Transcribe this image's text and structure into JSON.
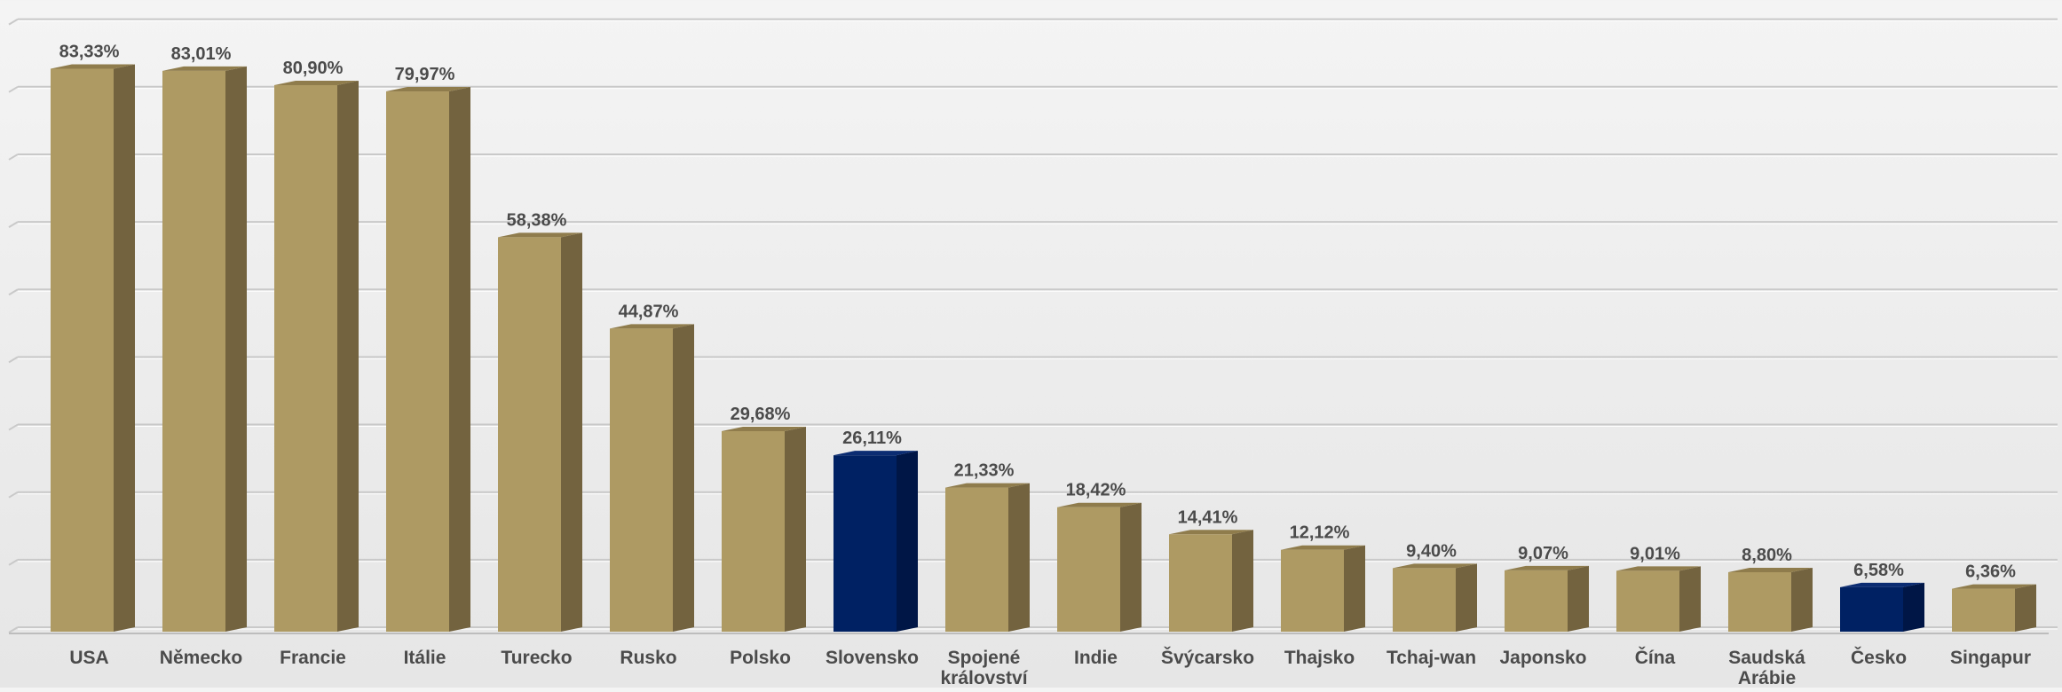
{
  "colors": {
    "bar_front": "#ae9a63",
    "bar_side": "#73633f",
    "bar_top": "#8f7c4c",
    "highlight_front": "#002163",
    "highlight_side": "#001646",
    "highlight_top": "#0b2c72",
    "gridline": "#c9c9c9",
    "gridline_light": "#ffffff",
    "label": "#4b4b4b"
  },
  "chart_data": {
    "type": "bar",
    "title": "",
    "xlabel": "",
    "ylabel": "",
    "ylim": [
      0,
      90
    ],
    "grid": true,
    "legend": "none",
    "categories": [
      "USA",
      "Německo",
      "Francie",
      "Itálie",
      "Turecko",
      "Rusko",
      "Polsko",
      "Slovensko",
      "Spojené království",
      "Indie",
      "Švýcarsko",
      "Thajsko",
      "Tchaj-wan",
      "Japonsko",
      "Čína",
      "Saudská Arábie",
      "Česko",
      "Singapur"
    ],
    "category_lines": [
      [
        "USA"
      ],
      [
        "Německo"
      ],
      [
        "Francie"
      ],
      [
        "Itálie"
      ],
      [
        "Turecko"
      ],
      [
        "Rusko"
      ],
      [
        "Polsko"
      ],
      [
        "Slovensko"
      ],
      [
        "Spojené",
        "království"
      ],
      [
        "Indie"
      ],
      [
        "Švýcarsko"
      ],
      [
        "Thajsko"
      ],
      [
        "Tchaj-wan"
      ],
      [
        "Japonsko"
      ],
      [
        "Čína"
      ],
      [
        "Saudská",
        "Arábie"
      ],
      [
        "Česko"
      ],
      [
        "Singapur"
      ]
    ],
    "values": [
      83.33,
      83.01,
      80.9,
      79.97,
      58.38,
      44.87,
      29.68,
      26.11,
      21.33,
      18.42,
      14.41,
      12.12,
      9.4,
      9.07,
      9.01,
      8.8,
      6.58,
      6.36
    ],
    "data_labels": [
      "83,33%",
      "83,01%",
      "80,90%",
      "79,97%",
      "58,38%",
      "44,87%",
      "29,68%",
      "26,11%",
      "21,33%",
      "18,42%",
      "14,41%",
      "12,12%",
      "9,40%",
      "9,07%",
      "9,01%",
      "8,80%",
      "6,58%",
      "6,36%"
    ],
    "highlighted": [
      "Slovensko",
      "Česko"
    ]
  }
}
